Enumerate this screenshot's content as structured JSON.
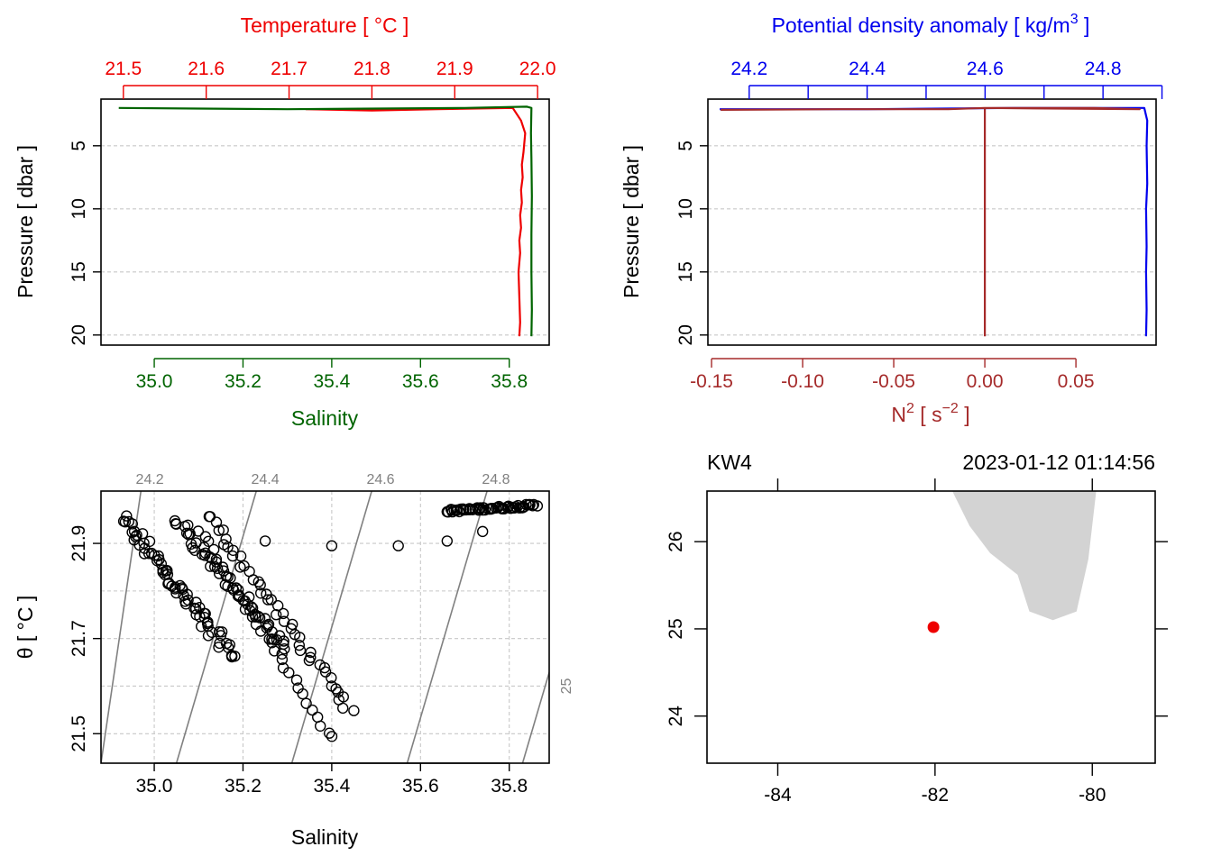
{
  "colors": {
    "temperature": "#ee0000",
    "salinity": "#006400",
    "density": "#0000ee",
    "n2": "#a52a2a",
    "land": "#d3d3d3",
    "station": "#ee0000",
    "isopycnal": "#808080",
    "grid": "#c8c8c8"
  },
  "chart_data": [
    {
      "type": "line",
      "name": "panel-ts-profile",
      "ylabel": "Pressure [ dbar ]",
      "ylim": [
        20.8,
        1.3
      ],
      "yticks": [
        5,
        10,
        15,
        20
      ],
      "top_axis": {
        "label": "Temperature [ °C ]",
        "lim": [
          21.473,
          22.014
        ],
        "ticks": [
          21.5,
          21.6,
          21.7,
          21.8,
          21.9,
          22.0
        ],
        "tick_labels": [
          "21.5",
          "21.6",
          "21.7",
          "21.8",
          "21.9",
          "22.0"
        ]
      },
      "bottom_axis": {
        "label": "Salinity",
        "lim": [
          34.88,
          35.89
        ],
        "ticks": [
          35.0,
          35.2,
          35.4,
          35.6,
          35.8
        ],
        "tick_labels": [
          "35.0",
          "35.2",
          "35.4",
          "35.6",
          "35.8"
        ]
      },
      "grid": true,
      "series": [
        {
          "name": "Temperature",
          "axis": "top",
          "color_key": "temperature",
          "x": [
            21.72,
            21.8,
            21.88,
            21.97,
            21.98,
            21.985,
            21.983,
            21.981,
            21.982,
            21.98,
            21.981,
            21.979,
            21.98,
            21.978,
            21.979,
            21.977,
            21.978,
            21.979,
            21.978
          ],
          "y": [
            2.1,
            2.2,
            2.1,
            2.0,
            3.0,
            4.0,
            5.5,
            6.5,
            7.5,
            8.5,
            9.5,
            10.5,
            11.5,
            12.5,
            13.5,
            15.0,
            17.0,
            19.0,
            20.1
          ]
        },
        {
          "name": "Salinity",
          "axis": "bottom",
          "color_key": "salinity",
          "x": [
            34.92,
            35.1,
            35.3,
            35.5,
            35.7,
            35.84,
            35.85,
            35.849,
            35.85,
            35.851,
            35.85,
            35.85,
            35.851,
            35.85
          ],
          "y": [
            2.0,
            2.05,
            2.1,
            2.05,
            2.0,
            1.9,
            2.0,
            4.0,
            6.0,
            9.0,
            12.0,
            15.0,
            18.0,
            20.1
          ]
        }
      ]
    },
    {
      "type": "line",
      "name": "panel-density-profile",
      "ylabel": "Pressure [ dbar ]",
      "ylim": [
        20.8,
        1.3
      ],
      "yticks": [
        5,
        10,
        15,
        20
      ],
      "top_axis": {
        "label": "Potential density anomaly [ kg/m",
        "label_sup": "3",
        "label_end": " ]",
        "lim": [
          24.13,
          24.89
        ],
        "ticks": [
          24.2,
          24.3,
          24.4,
          24.5,
          24.6,
          24.7,
          24.8,
          24.9
        ],
        "tick_labels": [
          "24.2",
          "",
          "24.4",
          "",
          "24.6",
          "",
          "24.8",
          ""
        ]
      },
      "bottom_axis": {
        "label": "N",
        "label_sup": "2",
        "label_mid": " [ s",
        "label_sup2": "−2",
        "label_end": " ]",
        "lim": [
          -0.152,
          0.094
        ],
        "ticks": [
          -0.15,
          -0.1,
          -0.05,
          0.0,
          0.05
        ],
        "tick_labels": [
          "-0.15",
          "-0.10",
          "-0.05",
          "0.00",
          "0.05"
        ]
      },
      "grid": true,
      "series": [
        {
          "name": "sigma-theta",
          "axis": "top",
          "color_key": "density",
          "x": [
            24.15,
            24.4,
            24.65,
            24.86,
            24.87,
            24.875,
            24.874,
            24.875,
            24.873,
            24.874,
            24.873,
            24.874,
            24.873
          ],
          "y": [
            2.1,
            2.1,
            2.0,
            2.0,
            2.0,
            3.0,
            5.0,
            8.0,
            10.0,
            13.0,
            15.0,
            18.0,
            20.1
          ]
        },
        {
          "name": "N2",
          "axis": "bottom",
          "color_key": "n2",
          "x": [
            -0.145,
            -0.08,
            -0.02,
            0.0,
            0.03,
            0.06,
            0.085,
            0.0,
            0.0,
            0.0
          ],
          "y": [
            2.15,
            2.1,
            2.1,
            2.0,
            2.0,
            2.0,
            2.1,
            2.0,
            10.0,
            20.1
          ]
        }
      ]
    },
    {
      "type": "scatter",
      "name": "panel-ts-diagram",
      "xlabel": "Salinity",
      "ylabel": "θ [ °C ]",
      "xlim": [
        34.88,
        35.89
      ],
      "ylim": [
        21.438,
        22.01
      ],
      "xticks": [
        35.0,
        35.2,
        35.4,
        35.6,
        35.8
      ],
      "xtick_labels": [
        "35.0",
        "35.2",
        "35.4",
        "35.6",
        "35.8"
      ],
      "yticks": [
        21.5,
        21.7,
        21.9
      ],
      "ytick_labels": [
        "21.5",
        "21.7",
        "21.9"
      ],
      "grid": true,
      "isopycnals": [
        {
          "label": "24.2",
          "s_at_top": 34.97,
          "s_at_bottom": 34.88,
          "label_s": 34.99
        },
        {
          "label": "24.4",
          "s_at_top": 35.23,
          "s_at_bottom": 35.05,
          "label_s": 35.25
        },
        {
          "label": "24.6",
          "s_at_top": 35.49,
          "s_at_bottom": 35.31,
          "label_s": 35.51
        },
        {
          "label": "24.8",
          "s_at_top": 35.75,
          "s_at_bottom": 35.57,
          "label_s": 35.77
        },
        {
          "label": "25",
          "s_at_top": 36.01,
          "s_at_bottom": 35.83,
          "label_s": 35.9
        }
      ],
      "branches": [
        {
          "s0": 34.93,
          "t0": 21.95,
          "s1": 35.18,
          "t1": 21.66,
          "spread": 0.03,
          "count": 70
        },
        {
          "s0": 35.05,
          "t0": 21.95,
          "s1": 35.3,
          "t1": 21.67,
          "spread": 0.025,
          "count": 55
        },
        {
          "s0": 35.12,
          "t0": 21.96,
          "s1": 35.44,
          "t1": 21.55,
          "spread": 0.02,
          "count": 45
        },
        {
          "s0": 35.1,
          "t0": 21.93,
          "s1": 35.4,
          "t1": 21.49,
          "spread": 0.012,
          "count": 30
        },
        {
          "s0": 35.66,
          "t0": 21.968,
          "s1": 35.86,
          "t1": 21.98,
          "spread": 0.008,
          "count": 60
        }
      ],
      "points": [
        {
          "s": 35.4,
          "t": 21.895
        },
        {
          "s": 35.55,
          "t": 21.895
        },
        {
          "s": 35.66,
          "t": 21.905
        },
        {
          "s": 35.74,
          "t": 21.925
        },
        {
          "s": 35.25,
          "t": 21.905
        }
      ]
    },
    {
      "type": "map",
      "name": "panel-station-map",
      "station": "KW4",
      "datetime": "2023-01-12 01:14:56",
      "xlim": [
        -84.9,
        -79.2
      ],
      "ylim": [
        23.46,
        26.58
      ],
      "xticks": [
        -84,
        -82,
        -80
      ],
      "xtick_labels": [
        "-84",
        "-82",
        "-80"
      ],
      "yticks": [
        24,
        25,
        26
      ],
      "ytick_labels": [
        "24",
        "25",
        "26"
      ],
      "station_lon": -82.02,
      "station_lat": 25.02,
      "land": [
        [
          -81.78,
          26.58
        ],
        [
          -81.56,
          26.18
        ],
        [
          -81.3,
          25.87
        ],
        [
          -80.95,
          25.62
        ],
        [
          -80.8,
          25.2
        ],
        [
          -80.5,
          25.1
        ],
        [
          -80.2,
          25.2
        ],
        [
          -80.05,
          25.8
        ],
        [
          -79.95,
          26.58
        ]
      ]
    }
  ]
}
